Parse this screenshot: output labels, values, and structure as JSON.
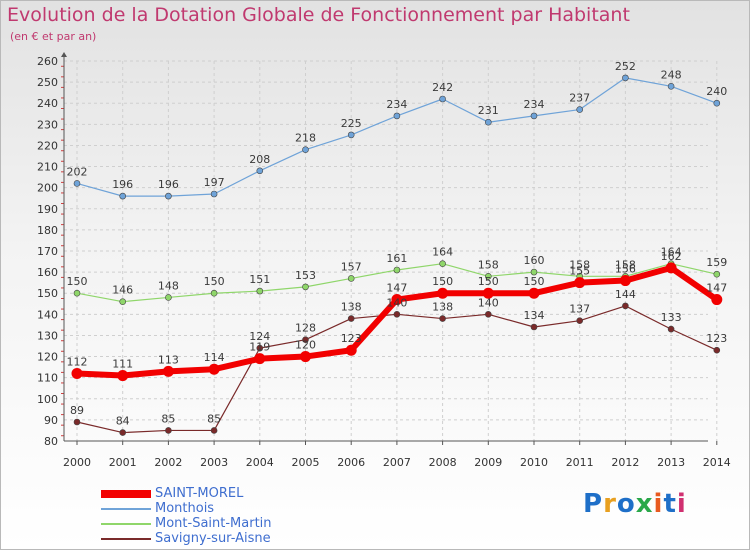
{
  "header": {
    "title": "Evolution de la Dotation Globale de Fonctionnement par Habitant",
    "subtitle": "(en € et par an)"
  },
  "logo": {
    "text": "Proxiti",
    "colors": [
      "#1e6fc8",
      "#e8a020",
      "#1e6fc8",
      "#2aa84a",
      "#e85a20",
      "#1e6fc8",
      "#d03070"
    ]
  },
  "chart_data": {
    "type": "line",
    "title": "Evolution de la Dotation Globale de Fonctionnement par Habitant",
    "subtitle": "(en € et par an)",
    "x": [
      "2000",
      "2001",
      "2002",
      "2003",
      "2004",
      "2005",
      "2006",
      "2007",
      "2008",
      "2009",
      "2010",
      "2011",
      "2012",
      "2013",
      "2014"
    ],
    "ylim": [
      80,
      260
    ],
    "ytick_step": 10,
    "grid": true,
    "legend_position": "bottom-left",
    "series": [
      {
        "name": "Monthois",
        "color": "#6fa3d8",
        "line_width": 1.2,
        "values": [
          202,
          196,
          196,
          197,
          208,
          218,
          225,
          234,
          242,
          231,
          234,
          237,
          252,
          248,
          240
        ],
        "labels": [
          "202",
          "196",
          "196",
          "197",
          "208",
          "218",
          "225",
          "234",
          "242",
          "231",
          "234",
          "237",
          "252",
          "248",
          "240"
        ]
      },
      {
        "name": "Mont-Saint-Martin",
        "color": "#8fd66a",
        "line_width": 1.2,
        "values": [
          150,
          146,
          148,
          150,
          151,
          153,
          157,
          161,
          164,
          158,
          160,
          158,
          158,
          164,
          159
        ],
        "labels": [
          "150",
          "146",
          "148",
          "150",
          "151",
          "153",
          "157",
          "161",
          "164",
          "158",
          "160",
          "158",
          "158",
          "164",
          "159"
        ]
      },
      {
        "name": "Savigny-sur-Aisne",
        "color": "#7a2a2a",
        "line_width": 1.2,
        "values": [
          89,
          84,
          85,
          85,
          124,
          128,
          138,
          140,
          138,
          140,
          134,
          137,
          144,
          133,
          123
        ],
        "labels": [
          "89",
          "84",
          "85",
          "85",
          "124",
          "128",
          "138",
          "140",
          "138",
          "140",
          "134",
          "137",
          "144",
          "133",
          "123"
        ]
      },
      {
        "name": "SAINT-MOREL",
        "color": "#f20000",
        "line_width": 6,
        "values": [
          112,
          111,
          113,
          114,
          119,
          120,
          123,
          147,
          150,
          150,
          150,
          155,
          156,
          162,
          147
        ],
        "labels": [
          "112",
          "111",
          "113",
          "114",
          "119",
          "120",
          "123",
          "147",
          "150",
          "150",
          "150",
          "155",
          "156",
          "162",
          "147"
        ]
      }
    ],
    "legend": [
      "SAINT-MOREL",
      "Monthois",
      "Mont-Saint-Martin",
      "Savigny-sur-Aisne"
    ]
  }
}
